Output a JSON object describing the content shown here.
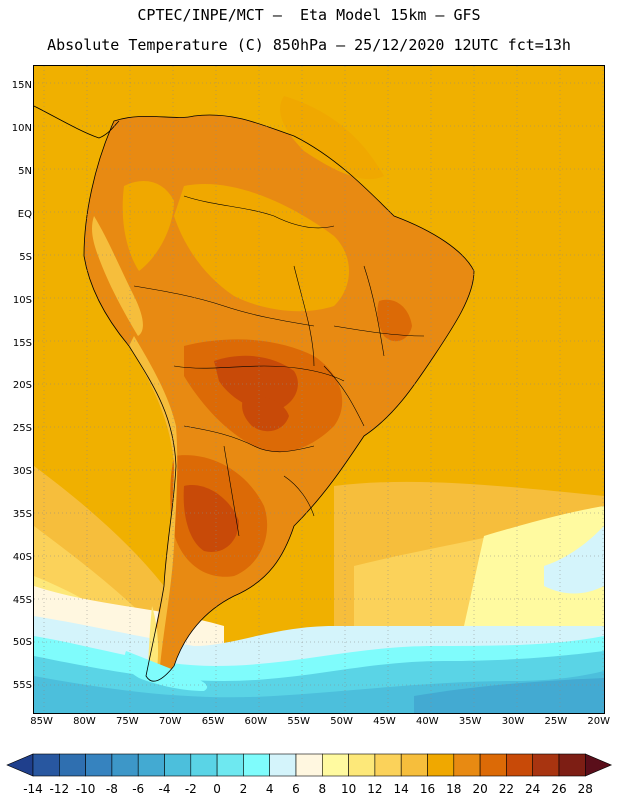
{
  "header": {
    "title_line1": "CPTEC/INPE/MCT –  Eta Model 15km – GFS",
    "title_line2": "Absolute Temperature (C) 850hPa – 25/12/2020 12UTC fct=13h"
  },
  "map": {
    "lat_labels": [
      "15N",
      "10N",
      "5N",
      "EQ",
      "5S",
      "10S",
      "15S",
      "20S",
      "25S",
      "30S",
      "35S",
      "40S",
      "45S",
      "50S",
      "55S"
    ],
    "lon_labels": [
      "85W",
      "80W",
      "75W",
      "70W",
      "65W",
      "60W",
      "55W",
      "50W",
      "45W",
      "40W",
      "35W",
      "30W",
      "25W",
      "20W"
    ],
    "lat_values": [
      15,
      10,
      5,
      0,
      -5,
      -10,
      -15,
      -20,
      -25,
      -30,
      -35,
      -40,
      -45,
      -50,
      -55
    ],
    "lon_values": [
      -85,
      -80,
      -75,
      -70,
      -65,
      -60,
      -55,
      -50,
      -45,
      -40,
      -35,
      -30,
      -25,
      -20
    ],
    "lat_range": [
      -58,
      17.5
    ],
    "lon_range": [
      -86,
      -19.5
    ]
  },
  "colorbar": {
    "labels": [
      "-14",
      "-12",
      "-10",
      "-8",
      "-6",
      "-4",
      "-2",
      "0",
      "2",
      "4",
      "6",
      "8",
      "10",
      "12",
      "14",
      "16",
      "18",
      "20",
      "22",
      "24",
      "26",
      "28"
    ],
    "colors": [
      "#1f3f8c",
      "#2857a0",
      "#2f6fb0",
      "#3683bf",
      "#3d97c8",
      "#43aad2",
      "#4cbfdc",
      "#5ad4e6",
      "#6ee8f0",
      "#7ffcfc",
      "#d4f4fb",
      "#fff7e0",
      "#fffaa0",
      "#fde879",
      "#fbd25a",
      "#f6be3c",
      "#f0a800",
      "#e88a12",
      "#dc6a06",
      "#c84a08",
      "#a83410",
      "#7d1e14",
      "#5a0e1a"
    ]
  }
}
